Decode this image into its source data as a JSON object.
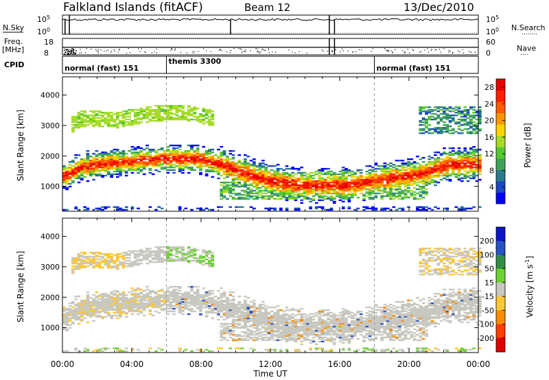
{
  "header": {
    "station": "Falkland Islands (fitACF)",
    "beam": "Beam 12",
    "date": "13/Dec/2010"
  },
  "panels": {
    "nsky": {
      "label": "N.Sky",
      "ticks": [
        "10^5",
        "10^0"
      ],
      "right_ticks": [
        "10^5",
        "10^0"
      ],
      "right_label": "N.Search",
      "right_dots": "........"
    },
    "freq": {
      "label": "Freq.",
      "unit": "[MHz]",
      "ticks": [
        "18",
        "8"
      ],
      "right_ticks": [
        "60",
        "0"
      ],
      "right_label": "Nave",
      "right_dots": "...."
    },
    "cpid": {
      "label": "CPID",
      "segments": [
        {
          "text": "normal (fast) 151",
          "start_h": 0
        },
        {
          "text": "themis 3300",
          "start_h": 6
        },
        {
          "text": "normal (fast) 151",
          "start_h": 18
        }
      ]
    }
  },
  "chart_data": [
    {
      "type": "heatmap",
      "title": "",
      "xlabel": "Time UT",
      "ylabel": "Slant Range [km]",
      "x_ticks": [
        "00:00",
        "04:00",
        "08:00",
        "12:00",
        "16:00",
        "20:00",
        "00:00"
      ],
      "y_ticks": [
        "1000",
        "2000",
        "3000",
        "4000"
      ],
      "xlim": [
        0,
        24
      ],
      "ylim": [
        180,
        4600
      ],
      "colorbar": {
        "label": "Power [dB]",
        "ticks": [
          "4",
          "8",
          "12",
          "16",
          "20",
          "24",
          "28"
        ],
        "range": [
          0,
          30
        ],
        "colors": [
          "#0000ff",
          "#1e46c8",
          "#2a7a8c",
          "#3fa35a",
          "#55c832",
          "#a6dc28",
          "#ffd200",
          "#ff9600",
          "#ff5a00",
          "#ff1e00",
          "#e60000"
        ]
      }
    },
    {
      "type": "heatmap",
      "title": "",
      "xlabel": "Time UT",
      "ylabel": "Slant Range [km]",
      "x_ticks": [
        "00:00",
        "04:00",
        "08:00",
        "12:00",
        "16:00",
        "20:00",
        "00:00"
      ],
      "y_ticks": [
        "1000",
        "2000",
        "3000",
        "4000"
      ],
      "xlim": [
        0,
        24
      ],
      "ylim": [
        180,
        4600
      ],
      "colorbar": {
        "label": "Velocity [m s^-1]",
        "ticks": [
          "200",
          "100",
          "50",
          "15",
          "-15",
          "-50",
          "-100",
          "-200"
        ],
        "range": [
          -250,
          250
        ],
        "colors": [
          "#0a14c8",
          "#2850c8",
          "#328c46",
          "#6ed232",
          "#c8c8c0",
          "#ffc832",
          "#ff8c00",
          "#ff3c00",
          "#dc0000"
        ]
      }
    }
  ],
  "colors": {
    "grey_scatter": "#c8c8c0"
  }
}
